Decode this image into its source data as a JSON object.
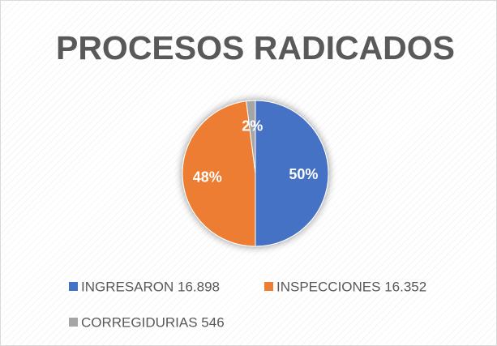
{
  "chart_data": {
    "type": "pie",
    "title": "PROCESOS RADICADOS",
    "categories": [
      "INGRESARON 16.898",
      "INSPECCIONES 16.352",
      "CORREGIDURIAS 546"
    ],
    "values": [
      50,
      48,
      2
    ],
    "value_labels": [
      "50%",
      "48%",
      "2%"
    ],
    "colors": [
      "#4472c4",
      "#ed7d31",
      "#a5a5a5"
    ],
    "legend": "bottom"
  }
}
